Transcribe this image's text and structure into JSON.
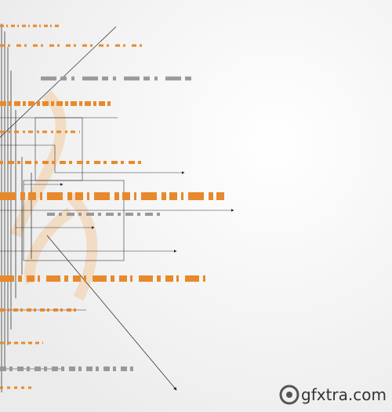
{
  "watermark": {
    "text": "gfxtra.com"
  }
}
